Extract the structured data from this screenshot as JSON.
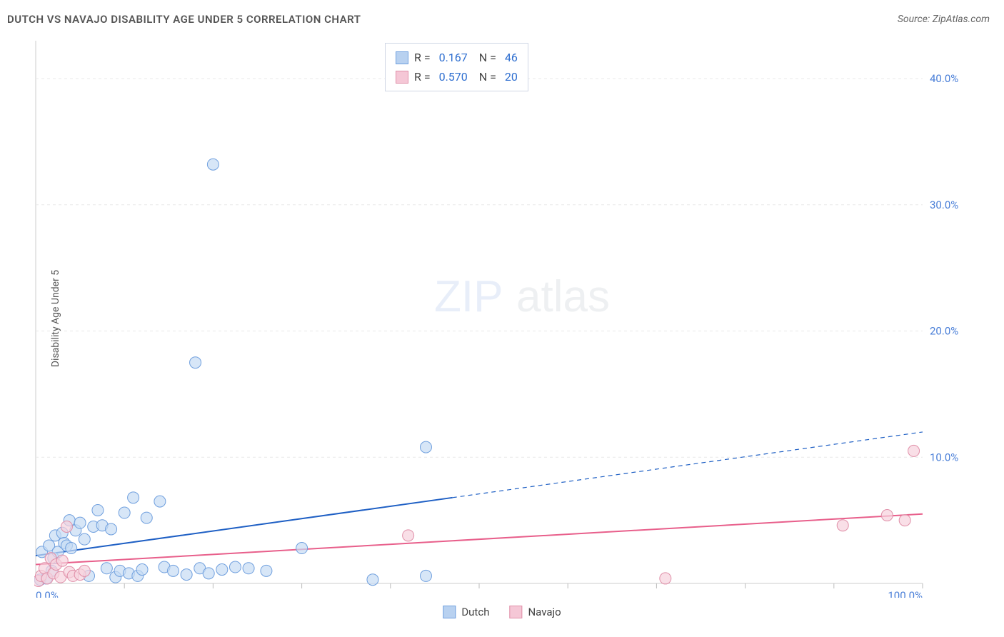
{
  "title": "DUTCH VS NAVAJO DISABILITY AGE UNDER 5 CORRELATION CHART",
  "source": "Source: ZipAtlas.com",
  "ylabel": "Disability Age Under 5",
  "watermark": {
    "zip": "ZIP",
    "atlas": "atlas"
  },
  "xlim": [
    0,
    100
  ],
  "ylim": [
    0,
    43
  ],
  "yticks": [
    {
      "v": 10,
      "label": "10.0%"
    },
    {
      "v": 20,
      "label": "20.0%"
    },
    {
      "v": 30,
      "label": "30.0%"
    },
    {
      "v": 40,
      "label": "40.0%"
    }
  ],
  "xticks_minor": [
    10,
    20,
    30,
    40,
    50,
    60,
    70,
    80,
    90,
    100
  ],
  "xlabel_min": "0.0%",
  "xlabel_max": "100.0%",
  "series": [
    {
      "key": "dutch",
      "name": "Dutch",
      "marker_fill": "#c6dbf4",
      "marker_stroke": "#6f9fde",
      "swatch_fill": "#b8d1f0",
      "swatch_border": "#6f9fde",
      "line_color": "#1e5fc4",
      "line_width": 2,
      "r": "0.167",
      "n": "46",
      "trend_solid": {
        "x1": 0,
        "y1": 2.2,
        "x2": 47,
        "y2": 6.8
      },
      "trend_dash": {
        "x1": 47,
        "y1": 6.8,
        "x2": 100,
        "y2": 12.0
      },
      "points": [
        {
          "x": 0.5,
          "y": 0.3
        },
        {
          "x": 0.7,
          "y": 2.5
        },
        {
          "x": 1.2,
          "y": 0.4
        },
        {
          "x": 1.5,
          "y": 3.0
        },
        {
          "x": 1.8,
          "y": 1.0
        },
        {
          "x": 2.0,
          "y": 2.0
        },
        {
          "x": 2.2,
          "y": 3.8
        },
        {
          "x": 2.5,
          "y": 2.5
        },
        {
          "x": 3.0,
          "y": 4.0
        },
        {
          "x": 3.2,
          "y": 3.2
        },
        {
          "x": 3.5,
          "y": 3.0
        },
        {
          "x": 3.8,
          "y": 5.0
        },
        {
          "x": 4.0,
          "y": 2.8
        },
        {
          "x": 4.5,
          "y": 4.2
        },
        {
          "x": 5.0,
          "y": 4.8
        },
        {
          "x": 5.5,
          "y": 3.5
        },
        {
          "x": 6.0,
          "y": 0.6
        },
        {
          "x": 6.5,
          "y": 4.5
        },
        {
          "x": 7.0,
          "y": 5.8
        },
        {
          "x": 7.5,
          "y": 4.6
        },
        {
          "x": 8.0,
          "y": 1.2
        },
        {
          "x": 8.5,
          "y": 4.3
        },
        {
          "x": 9.0,
          "y": 0.5
        },
        {
          "x": 9.5,
          "y": 1.0
        },
        {
          "x": 10.0,
          "y": 5.6
        },
        {
          "x": 10.5,
          "y": 0.8
        },
        {
          "x": 11.0,
          "y": 6.8
        },
        {
          "x": 11.5,
          "y": 0.6
        },
        {
          "x": 12.0,
          "y": 1.1
        },
        {
          "x": 12.5,
          "y": 5.2
        },
        {
          "x": 14.0,
          "y": 6.5
        },
        {
          "x": 14.5,
          "y": 1.3
        },
        {
          "x": 15.5,
          "y": 1.0
        },
        {
          "x": 17.0,
          "y": 0.7
        },
        {
          "x": 18.0,
          "y": 17.5
        },
        {
          "x": 18.5,
          "y": 1.2
        },
        {
          "x": 19.5,
          "y": 0.8
        },
        {
          "x": 20.0,
          "y": 33.2
        },
        {
          "x": 21.0,
          "y": 1.1
        },
        {
          "x": 22.5,
          "y": 1.3
        },
        {
          "x": 24.0,
          "y": 1.2
        },
        {
          "x": 26.0,
          "y": 1.0
        },
        {
          "x": 30.0,
          "y": 2.8
        },
        {
          "x": 38.0,
          "y": 0.3
        },
        {
          "x": 44.0,
          "y": 10.8
        },
        {
          "x": 44.0,
          "y": 0.6
        }
      ]
    },
    {
      "key": "navajo",
      "name": "Navajo",
      "marker_fill": "#f6d1dd",
      "marker_stroke": "#e08fa8",
      "swatch_fill": "#f5c7d6",
      "swatch_border": "#e08fa8",
      "line_color": "#e85f8b",
      "line_width": 2,
      "r": "0.570",
      "n": "20",
      "trend_solid": {
        "x1": 0,
        "y1": 1.5,
        "x2": 100,
        "y2": 5.5
      },
      "trend_dash": null,
      "points": [
        {
          "x": 0.3,
          "y": 0.2
        },
        {
          "x": 0.6,
          "y": 0.6
        },
        {
          "x": 1.0,
          "y": 1.2
        },
        {
          "x": 1.3,
          "y": 0.4
        },
        {
          "x": 1.7,
          "y": 2.0
        },
        {
          "x": 2.0,
          "y": 0.8
        },
        {
          "x": 2.3,
          "y": 1.5
        },
        {
          "x": 2.8,
          "y": 0.5
        },
        {
          "x": 3.0,
          "y": 1.8
        },
        {
          "x": 3.5,
          "y": 4.5
        },
        {
          "x": 3.8,
          "y": 0.9
        },
        {
          "x": 4.2,
          "y": 0.6
        },
        {
          "x": 5.0,
          "y": 0.7
        },
        {
          "x": 5.5,
          "y": 1.0
        },
        {
          "x": 42.0,
          "y": 3.8
        },
        {
          "x": 71.0,
          "y": 0.4
        },
        {
          "x": 91.0,
          "y": 4.6
        },
        {
          "x": 96.0,
          "y": 5.4
        },
        {
          "x": 98.0,
          "y": 5.0
        },
        {
          "x": 99.0,
          "y": 10.5
        }
      ]
    }
  ],
  "colors": {
    "background": "#ffffff",
    "title": "#555555",
    "grid": "#e8e8e8",
    "axis": "#cccccc",
    "tick_label": "#4a7fd8"
  },
  "marker_radius": 8,
  "fontsize": {
    "title": 15,
    "tick": 15,
    "label": 14,
    "legend": 15,
    "stats": 16
  }
}
